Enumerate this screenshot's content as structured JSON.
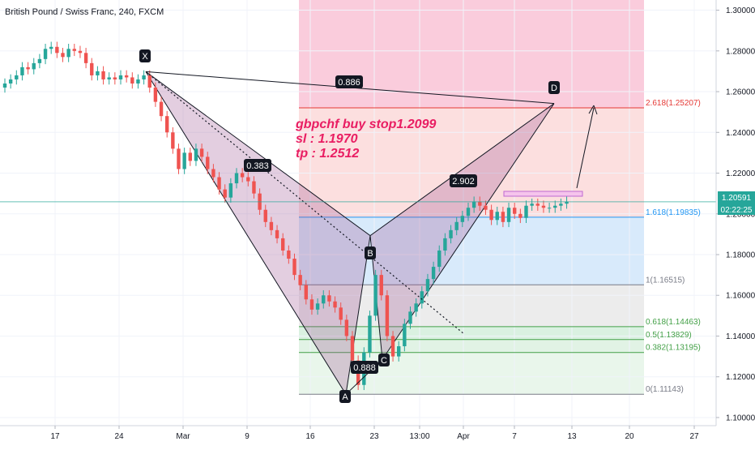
{
  "chart_title": "British Pound / Swiss Franc, 240, FXCM",
  "annotation": {
    "line1": "gbpchf buy stop1.2099",
    "line2": "sl : 1.1970",
    "line3": "tp : 1.2512"
  },
  "price_tag": {
    "price": "1.20591",
    "countdown": "02:22:25"
  },
  "pattern_points": {
    "X": "X",
    "A": "A",
    "B": "B",
    "C": "C",
    "D": "D"
  },
  "ratio_labels": {
    "xd": "0.886",
    "xab": "0.383",
    "abc": "0.888",
    "bcd": "2.902"
  },
  "colors": {
    "bullish": "#26a69a",
    "bearish": "#ef5350",
    "pattern_fill": "#9c4f8f",
    "annotation": "#e91e63",
    "fib_red": "#e53935",
    "fib_blue": "#2196f3",
    "fib_gray": "#787b86",
    "fib_green": "#43a047"
  },
  "chart_data": {
    "type": "candlestick",
    "title": "British Pound / Swiss Franc, 240, FXCM",
    "y_axis": {
      "range": [
        1.096,
        1.305
      ],
      "ticks": [
        "1.30000",
        "1.28000",
        "1.26000",
        "1.24000",
        "1.22000",
        "1.20000",
        "1.18000",
        "1.16000",
        "1.14000",
        "1.12000",
        "1.10000"
      ]
    },
    "x_axis": {
      "ticks": [
        "17",
        "24",
        "Mar",
        "9",
        "16",
        "23",
        "13:00",
        "Apr",
        "7",
        "13",
        "20",
        "27"
      ]
    },
    "fib_levels": [
      {
        "label": "2.618(1.25207)",
        "price": 1.25207,
        "color": "#e53935"
      },
      {
        "label": "1.618(1.19835)",
        "price": 1.19835,
        "color": "#2196f3"
      },
      {
        "label": "1(1.16515)",
        "price": 1.16515,
        "color": "#787b86"
      },
      {
        "label": "0.618(1.14463)",
        "price": 1.14463,
        "color": "#43a047"
      },
      {
        "label": "0.5(1.13829)",
        "price": 1.13829,
        "color": "#43a047"
      },
      {
        "label": "0.382(1.13195)",
        "price": 1.13195,
        "color": "#43a047"
      },
      {
        "label": "0(1.11143)",
        "price": 1.11143,
        "color": "#787b86"
      }
    ],
    "fib_top_price": 1.305,
    "current_price": 1.20591,
    "pattern": {
      "X": 1.2698,
      "A": 1.1114,
      "B": 1.1893,
      "C": 1.1285,
      "D": 1.2542
    },
    "series": [
      {
        "name": "price",
        "values": [
          1.264,
          1.266,
          1.268,
          1.272,
          1.271,
          1.274,
          1.276,
          1.281,
          1.282,
          1.279,
          1.277,
          1.281,
          1.28,
          1.279,
          1.274,
          1.268,
          1.27,
          1.266,
          1.267,
          1.266,
          1.268,
          1.267,
          1.264,
          1.266,
          1.268,
          1.262,
          1.255,
          1.248,
          1.24,
          1.232,
          1.222,
          1.23,
          1.226,
          1.232,
          1.228,
          1.222,
          1.218,
          1.212,
          1.208,
          1.215,
          1.22,
          1.218,
          1.216,
          1.21,
          1.202,
          1.196,
          1.192,
          1.188,
          1.182,
          1.178,
          1.17,
          1.165,
          1.158,
          1.153,
          1.156,
          1.16,
          1.157,
          1.154,
          1.148,
          1.14,
          1.128,
          1.116,
          1.132,
          1.15,
          1.17,
          1.16,
          1.14,
          1.13,
          1.135,
          1.146,
          1.152,
          1.156,
          1.162,
          1.168,
          1.174,
          1.182,
          1.188,
          1.192,
          1.196,
          1.199,
          1.203,
          1.206,
          1.204,
          1.202,
          1.197,
          1.201,
          1.196,
          1.203,
          1.2,
          1.198,
          1.204,
          1.205,
          1.204,
          1.203,
          1.203,
          1.204,
          1.205,
          1.206
        ]
      }
    ]
  }
}
